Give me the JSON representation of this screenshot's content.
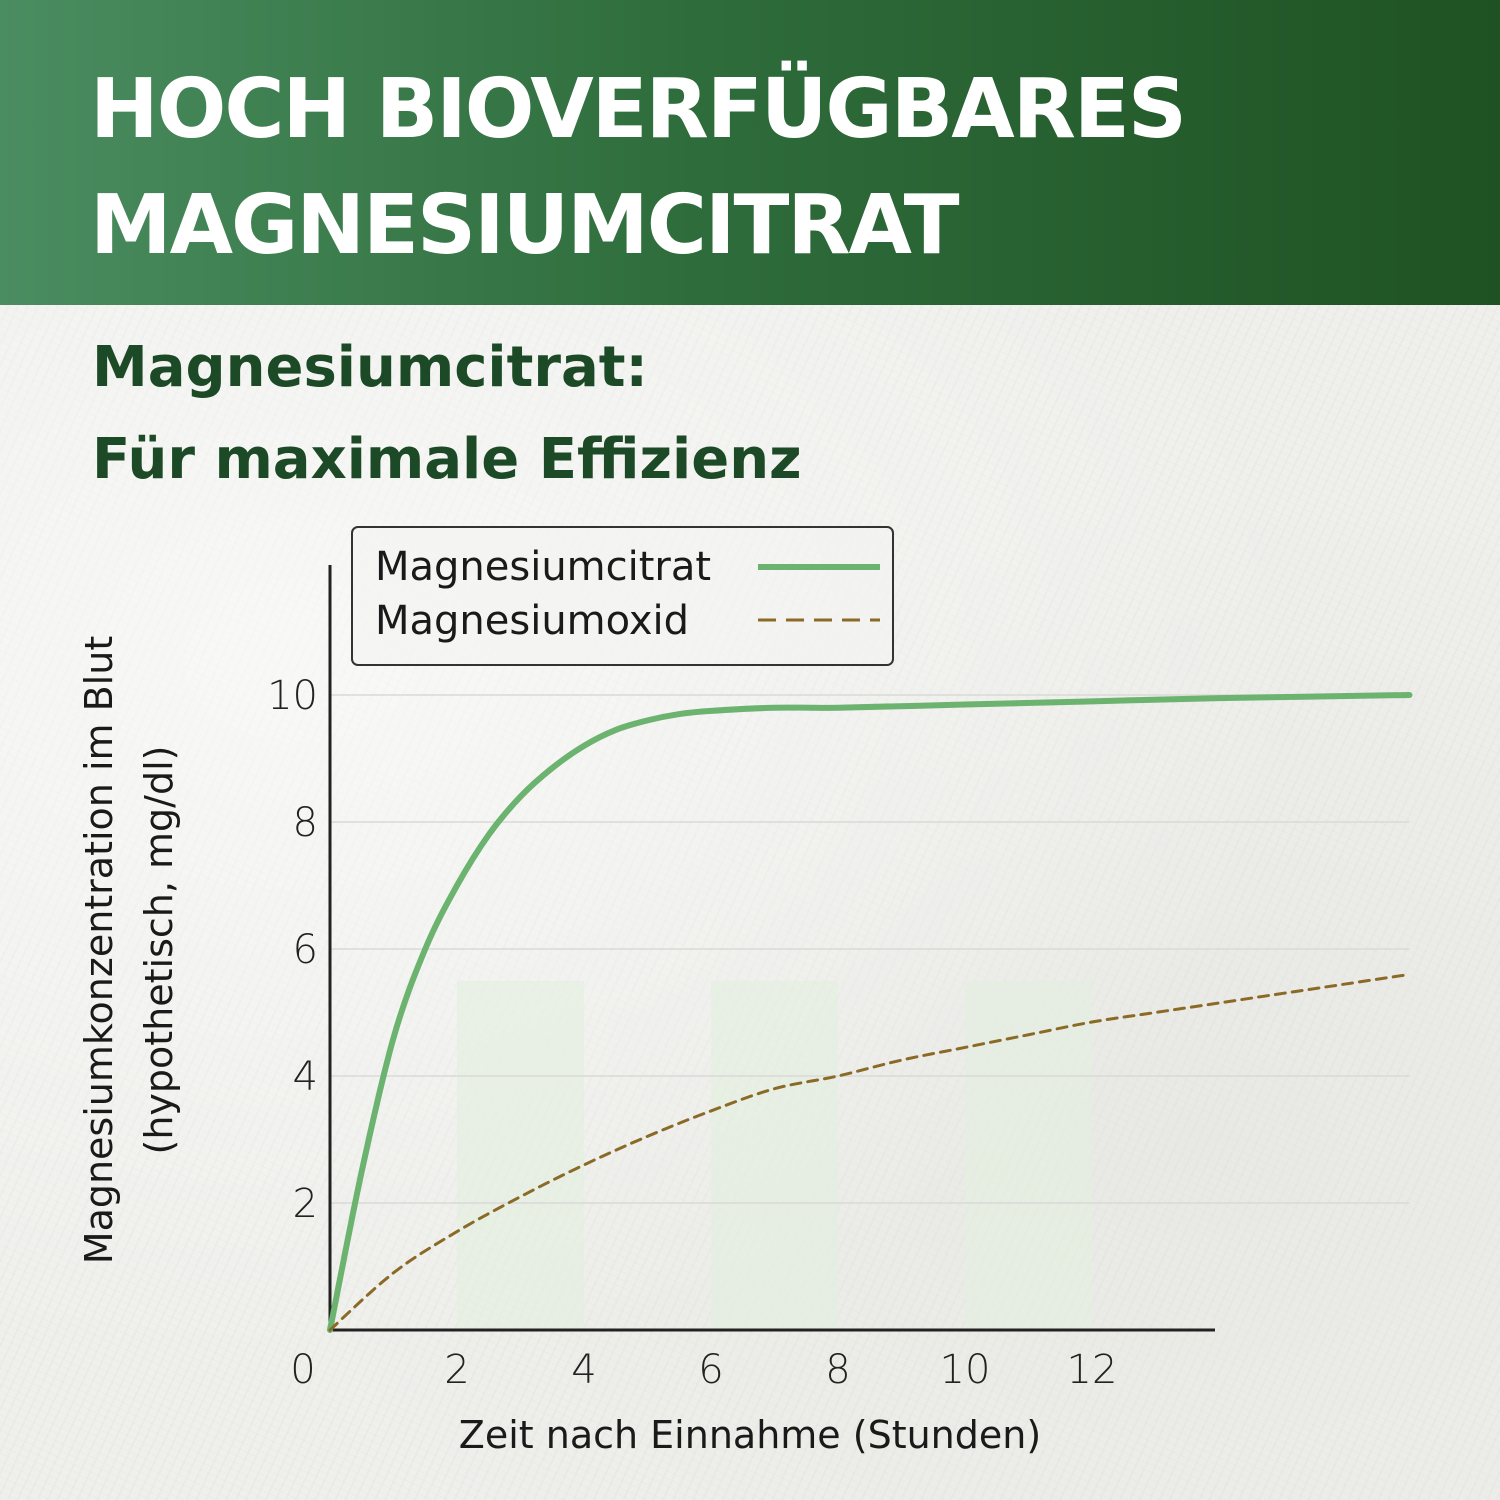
{
  "header": {
    "title_line1": "HOCH BIOVERFÜGBARES",
    "title_line2": "MAGNESIUMCITRAT",
    "background_color": "#2f6d3c"
  },
  "subheader": {
    "line1": "Magnesiumcitrat:",
    "line2": "Für maximale Effizienz",
    "color": "#1d4a26"
  },
  "chart_data": {
    "type": "line",
    "title": "",
    "xlabel": "Zeit nach Einnahme (Stunden)",
    "ylabel_line1": "Magnesiumkonzentration im Blut",
    "ylabel_line2": "(hypothetisch, mg/dl)",
    "xlim": [
      0,
      17
    ],
    "ylim": [
      0,
      10
    ],
    "x_ticks": [
      "0",
      "2",
      "4",
      "6",
      "8",
      "10",
      "12"
    ],
    "y_ticks": [
      "2",
      "4",
      "6",
      "8",
      "10"
    ],
    "legend_position": "top",
    "series": [
      {
        "name": "Magnesiumcitrat",
        "color": "#6bb36f",
        "style": "solid",
        "x": [
          0,
          0.5,
          1,
          1.5,
          2,
          2.5,
          3,
          3.5,
          4,
          4.5,
          5,
          5.5,
          6,
          7,
          8,
          10,
          12,
          14,
          17
        ],
        "y": [
          0,
          2.5,
          4.6,
          6.0,
          7.0,
          7.8,
          8.4,
          8.85,
          9.2,
          9.45,
          9.6,
          9.7,
          9.75,
          9.8,
          9.8,
          9.85,
          9.9,
          9.95,
          10.0
        ]
      },
      {
        "name": "Magnesiumoxid",
        "color": "#8a6a26",
        "style": "dashed",
        "x": [
          0,
          1,
          2,
          3,
          4,
          5,
          6,
          7,
          8,
          9,
          10,
          11,
          12,
          13,
          14,
          15,
          16,
          17
        ],
        "y": [
          0,
          0.9,
          1.55,
          2.1,
          2.6,
          3.05,
          3.45,
          3.8,
          4.0,
          4.25,
          4.45,
          4.65,
          4.85,
          5.0,
          5.15,
          5.3,
          5.45,
          5.6
        ]
      }
    ],
    "shaded_bands": [
      {
        "x_start": 2,
        "x_end": 4,
        "y_top": 5.5
      },
      {
        "x_start": 6,
        "x_end": 8,
        "y_top": 5.5
      },
      {
        "x_start": 10,
        "x_end": 12,
        "y_top": 5.5
      }
    ]
  }
}
